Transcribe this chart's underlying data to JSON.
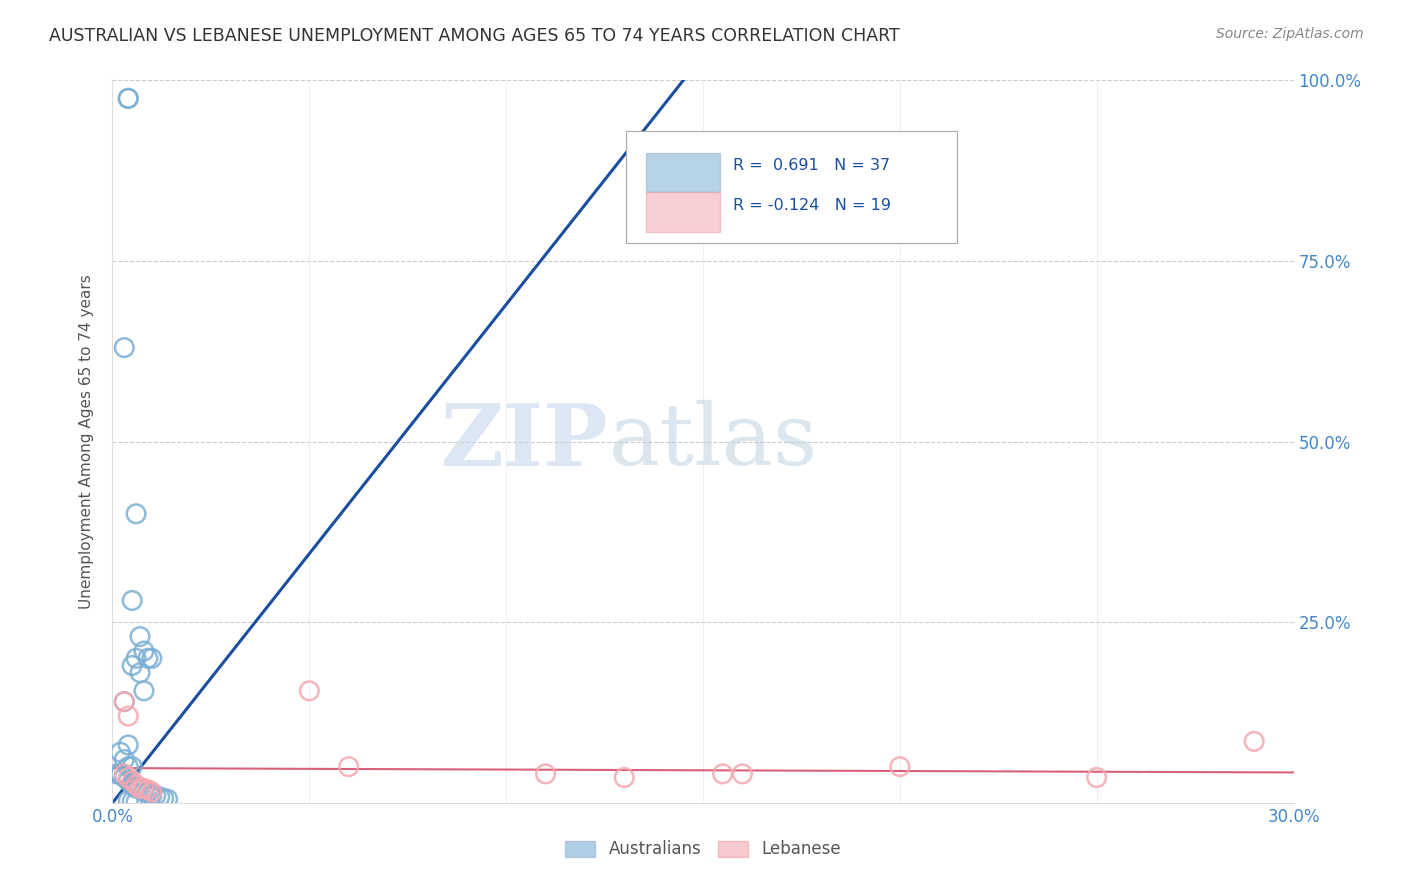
{
  "title": "AUSTRALIAN VS LEBANESE UNEMPLOYMENT AMONG AGES 65 TO 74 YEARS CORRELATION CHART",
  "source": "Source: ZipAtlas.com",
  "ylabel": "Unemployment Among Ages 65 to 74 years",
  "xlim": [
    0.0,
    0.3
  ],
  "ylim": [
    0.0,
    1.0
  ],
  "xticks": [
    0.0,
    0.05,
    0.1,
    0.15,
    0.2,
    0.25,
    0.3
  ],
  "yticks": [
    0.0,
    0.25,
    0.5,
    0.75,
    1.0
  ],
  "ytick_labels_right": [
    "",
    "25.0%",
    "50.0%",
    "75.0%",
    "100.0%"
  ],
  "xtick_labels": [
    "0.0%",
    "",
    "",
    "",
    "",
    "",
    "30.0%"
  ],
  "background_color": "#ffffff",
  "grid_color": "#cccccc",
  "watermark_zip": "ZIP",
  "watermark_atlas": "atlas",
  "legend_R_aus": "0.691",
  "legend_N_aus": "37",
  "legend_R_leb": "-0.124",
  "legend_N_leb": "19",
  "aus_color": "#7bafd4",
  "leb_color": "#f4a8b0",
  "aus_line_color": "#1a4fa0",
  "leb_line_color": "#d9607a",
  "aus_scatter_x": [
    0.004,
    0.004,
    0.003,
    0.006,
    0.005,
    0.007,
    0.008,
    0.009,
    0.01,
    0.006,
    0.005,
    0.007,
    0.008,
    0.003,
    0.004,
    0.002,
    0.003,
    0.004,
    0.005,
    0.002,
    0.001,
    0.002,
    0.003,
    0.004,
    0.005,
    0.006,
    0.007,
    0.008,
    0.009,
    0.01,
    0.011,
    0.012,
    0.013,
    0.014,
    0.004,
    0.005,
    0.006
  ],
  "aus_scatter_y": [
    0.975,
    0.975,
    0.63,
    0.4,
    0.28,
    0.23,
    0.21,
    0.2,
    0.2,
    0.2,
    0.19,
    0.18,
    0.155,
    0.14,
    0.08,
    0.07,
    0.06,
    0.05,
    0.05,
    0.04,
    0.04,
    0.04,
    0.035,
    0.03,
    0.025,
    0.02,
    0.02,
    0.015,
    0.015,
    0.01,
    0.01,
    0.008,
    0.006,
    0.005,
    0.003,
    0.002,
    0.001
  ],
  "leb_scatter_x": [
    0.003,
    0.004,
    0.005,
    0.006,
    0.007,
    0.008,
    0.009,
    0.01,
    0.003,
    0.004,
    0.05,
    0.06,
    0.11,
    0.155,
    0.13,
    0.2,
    0.25,
    0.29,
    0.16
  ],
  "leb_scatter_y": [
    0.04,
    0.035,
    0.03,
    0.025,
    0.02,
    0.02,
    0.018,
    0.015,
    0.14,
    0.12,
    0.155,
    0.05,
    0.04,
    0.04,
    0.035,
    0.05,
    0.035,
    0.085,
    0.04
  ],
  "aus_trendline_x": [
    0.0,
    0.145
  ],
  "aus_trendline_y": [
    0.0,
    1.0
  ],
  "leb_trendline_x": [
    0.0,
    0.3
  ],
  "leb_trendline_y": [
    0.048,
    0.042
  ]
}
